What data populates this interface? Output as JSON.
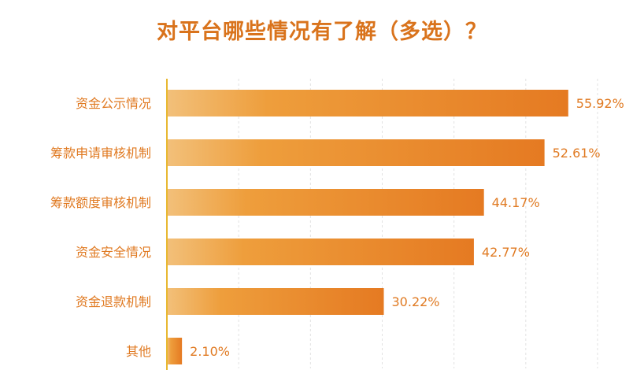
{
  "chart_data": {
    "type": "bar",
    "orientation": "horizontal",
    "title": "对平台哪些情况有了解（多选）？",
    "categories": [
      "资金公示情况",
      "筹款申请审核机制",
      "筹款额度审核机制",
      "资金安全情况",
      "资金退款机制",
      "其他"
    ],
    "values": [
      55.92,
      52.61,
      44.17,
      42.77,
      30.22,
      2.1
    ],
    "value_labels": [
      "55.92%",
      "52.61%",
      "44.17%",
      "42.77%",
      "30.22%",
      "2.10%"
    ],
    "xlim": [
      0,
      60
    ],
    "grid": true,
    "legend": "none",
    "colors": {
      "title": "#D9731C",
      "label": "#E07A22",
      "bar_start": "#F2C07A",
      "bar_mid": "#EE9E3C",
      "bar_end": "#E57A22",
      "axis": "#E8B830",
      "grid": "#E2E2E2"
    }
  }
}
